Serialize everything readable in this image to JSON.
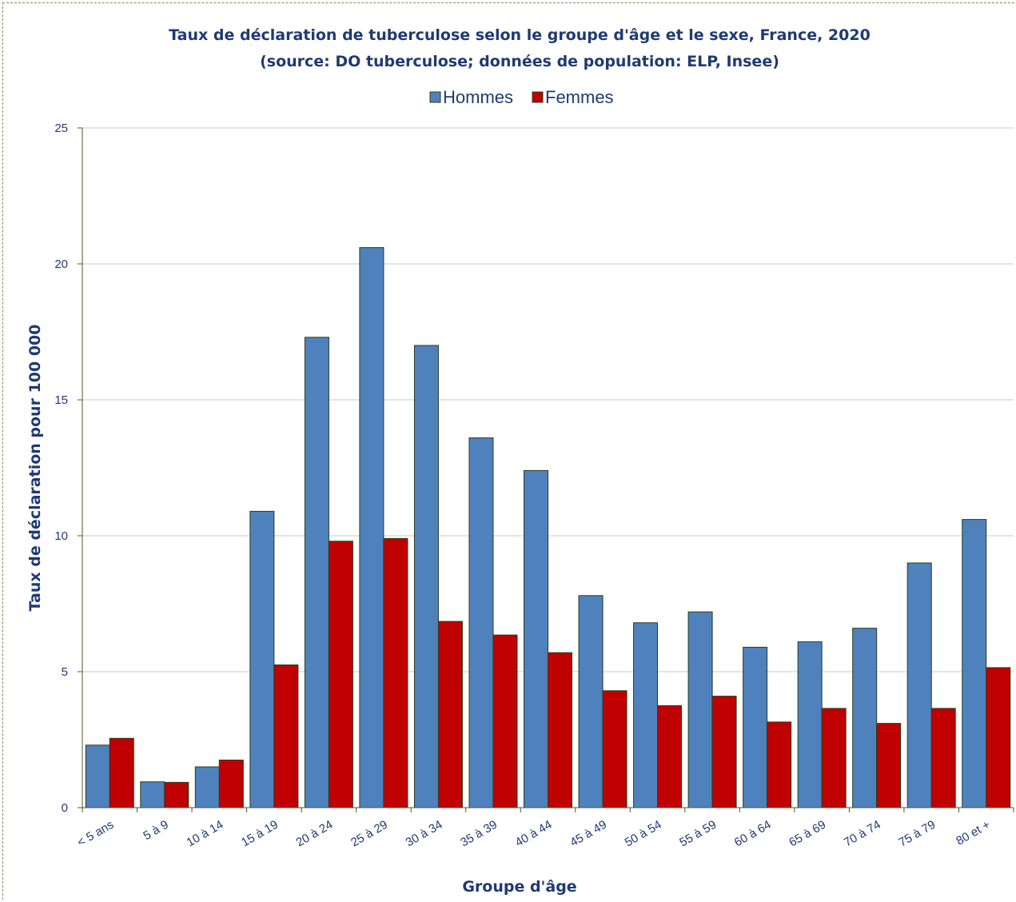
{
  "chart_data": {
    "type": "bar",
    "title": "Taux de déclaration de tuberculose selon le groupe d'âge et le sexe, France, 2020",
    "subtitle": "(source: DO tuberculose; données de population: ELP, Insee)",
    "xlabel": "Groupe d'âge",
    "ylabel": "Taux de déclaration pour 100 000",
    "ylim": [
      0,
      25
    ],
    "yticks": [
      0,
      5,
      10,
      15,
      20,
      25
    ],
    "grid": true,
    "legend_position": "top-center",
    "categories": [
      "< 5 ans",
      "5 à 9",
      "10 à 14",
      "15 à 19",
      "20 à 24",
      "25 à 29",
      "30 à 34",
      "35 à 39",
      "40 à 44",
      "45 à 49",
      "50 à 54",
      "55 à 59",
      "60 à 64",
      "65 à 69",
      "70 à 74",
      "75 à 79",
      "80  et +"
    ],
    "series": [
      {
        "name": "Hommes",
        "color": "#4f81bd",
        "values": [
          2.3,
          0.95,
          1.5,
          10.9,
          17.3,
          20.6,
          17.0,
          13.6,
          12.4,
          7.8,
          6.8,
          7.2,
          5.9,
          6.1,
          6.6,
          9.0,
          10.6
        ]
      },
      {
        "name": "Femmes",
        "color": "#c00000",
        "values": [
          2.55,
          0.93,
          1.75,
          5.25,
          9.8,
          9.9,
          6.85,
          6.35,
          5.7,
          4.3,
          3.75,
          4.1,
          3.15,
          3.65,
          3.1,
          3.65,
          5.15
        ]
      }
    ]
  }
}
